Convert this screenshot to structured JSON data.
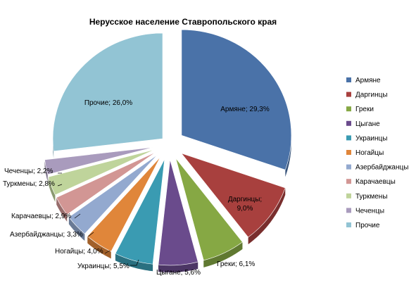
{
  "chart_data": {
    "type": "pie",
    "title": "Нерусское население Ставропольского края",
    "legend_position": "right",
    "exploded": true,
    "three_d": true,
    "slices": [
      {
        "name": "Армяне",
        "value": 29.3,
        "label": "Армяне; 29,3%",
        "color": "#4a72a8"
      },
      {
        "name": "Даргинцы",
        "value": 9.0,
        "label_lines": [
          "Даргинцы;",
          "9,0%"
        ],
        "color": "#a8403e"
      },
      {
        "name": "Греки",
        "value": 6.1,
        "label": "Греки; 6,1%",
        "color": "#86a844"
      },
      {
        "name": "Цыгане",
        "value": 5.6,
        "label": "Цыгане; 5,6%",
        "color": "#6a4b8c"
      },
      {
        "name": "Украинцы",
        "value": 5.5,
        "label": "Украинцы; 5,5%",
        "color": "#3a9bb2"
      },
      {
        "name": "Ногайцы",
        "value": 4.0,
        "label": "Ногайцы; 4,0%",
        "color": "#e0863a"
      },
      {
        "name": "Азербайджанцы",
        "value": 3.3,
        "label": "Азербайджанцы; 3,3%",
        "color": "#93a9cf"
      },
      {
        "name": "Карачаевцы",
        "value": 2.9,
        "label": "Карачаевцы; 2,9%",
        "color": "#d29694"
      },
      {
        "name": "Туркмены",
        "value": 2.8,
        "label": "Туркмены; 2,8%",
        "color": "#bfd49b"
      },
      {
        "name": "Чеченцы",
        "value": 2.2,
        "label": "Чеченцы; 2,2%",
        "color": "#a99bbd"
      },
      {
        "name": "Прочие",
        "value": 26.0,
        "label": "Прочие; 26,0%",
        "color": "#92c4d4"
      }
    ]
  }
}
